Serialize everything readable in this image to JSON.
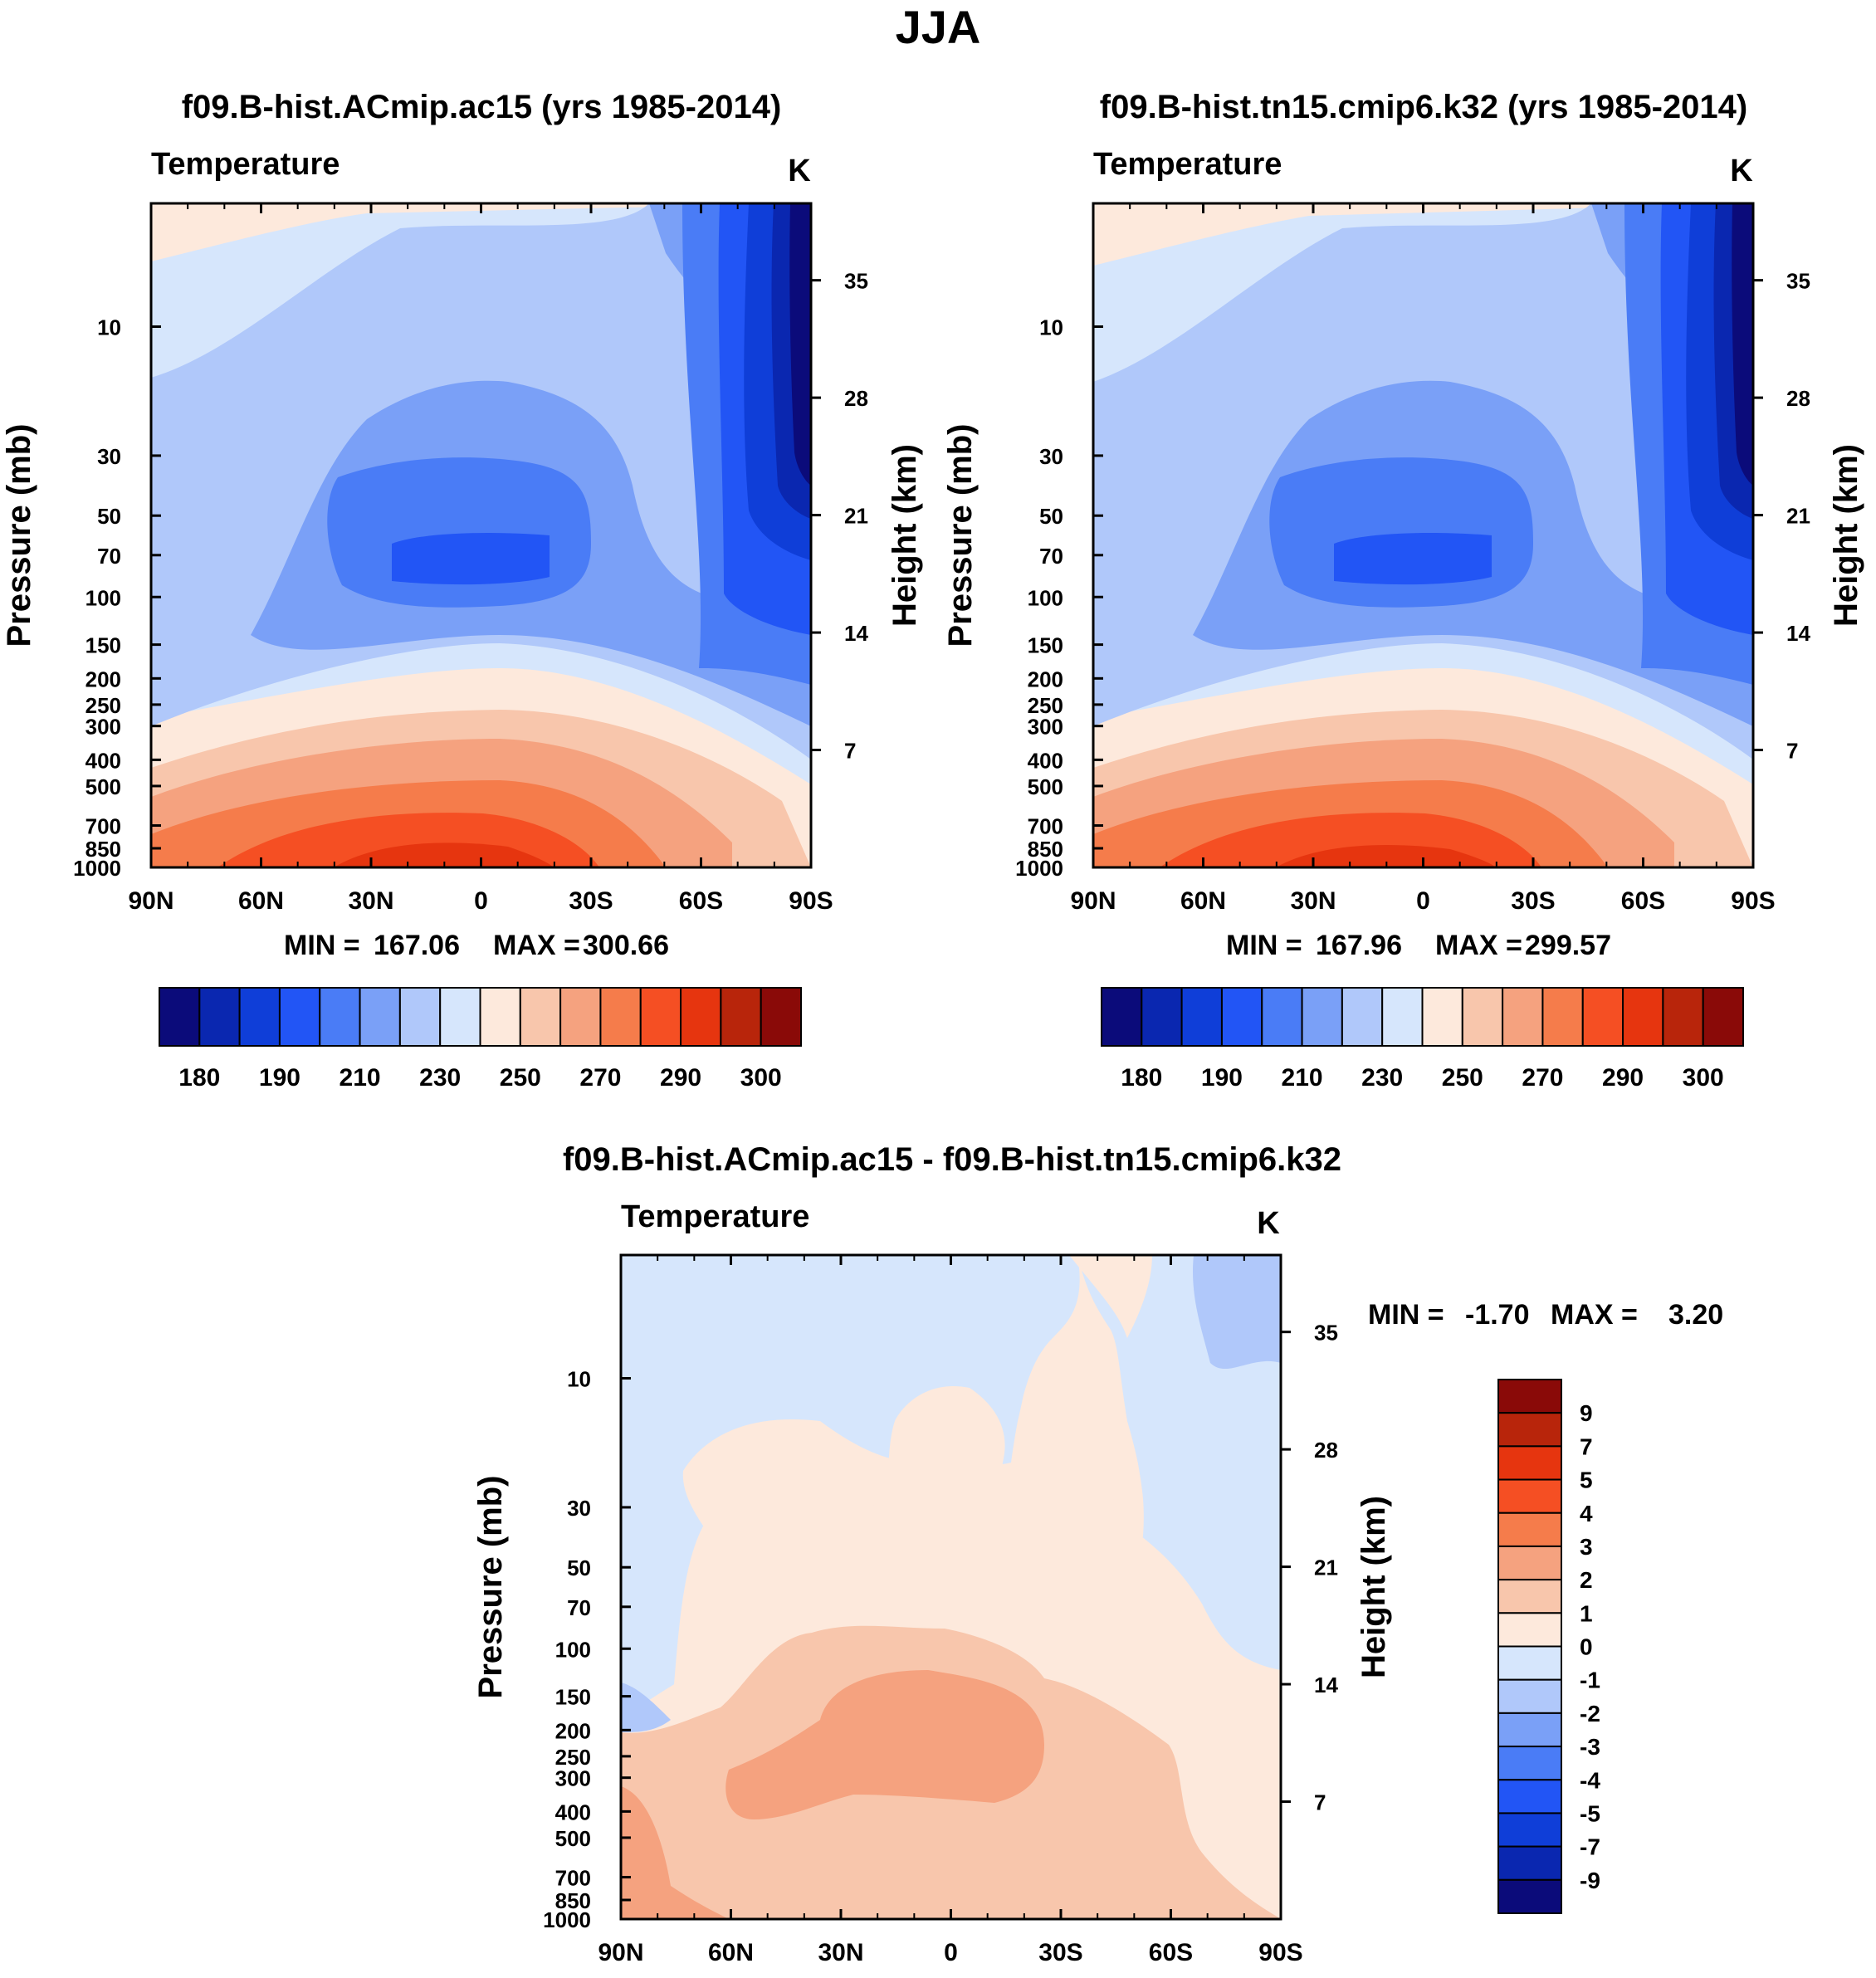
{
  "season_title": "JJA",
  "chart_data": [
    {
      "type": "contour",
      "title": "f09.B-hist.ACmip.ac15 (yrs 1985-2014)",
      "field_label": "Temperature",
      "units": "K",
      "ylabel": "Pressure (mb)",
      "y2label": "Height (km)",
      "x_ticks": [
        "90N",
        "60N",
        "30N",
        "0",
        "30S",
        "60S",
        "90S"
      ],
      "y_ticks": [
        "10",
        "30",
        "50",
        "70",
        "100",
        "150",
        "200",
        "250",
        "300",
        "400",
        "500",
        "700",
        "850",
        "1000"
      ],
      "y_tick_values": [
        10,
        30,
        50,
        70,
        100,
        150,
        200,
        250,
        300,
        400,
        500,
        700,
        850,
        1000
      ],
      "height_ticks": [
        "35",
        "28",
        "21",
        "14",
        "7"
      ],
      "height_tick_values": [
        35,
        28,
        21,
        14,
        7
      ],
      "xlim": [
        90,
        -90
      ],
      "ylim_mb": [
        3.5,
        1000
      ],
      "stats": {
        "min_label": "MIN =",
        "min": "167.06",
        "max_label": "MAX =",
        "max": "300.66"
      },
      "colorbar": {
        "orientation": "horizontal",
        "colors": [
          "#0b0b7a",
          "#0a27b0",
          "#0f3ed8",
          "#2255f5",
          "#4a7cf6",
          "#7aa0f7",
          "#b0c8fa",
          "#d6e6fc",
          "#fde9dc",
          "#f8c6ac",
          "#f5a27f",
          "#f57c4b",
          "#f54f23",
          "#e6350f",
          "#b8250b",
          "#8a0a08"
        ],
        "labels": [
          "180",
          "190",
          "210",
          "230",
          "250",
          "270",
          "290",
          "300"
        ]
      }
    },
    {
      "type": "contour",
      "title": "f09.B-hist.tn15.cmip6.k32 (yrs 1985-2014)",
      "field_label": "Temperature",
      "units": "K",
      "ylabel": "Pressure (mb)",
      "y2label": "Height (km)",
      "x_ticks": [
        "90N",
        "60N",
        "30N",
        "0",
        "30S",
        "60S",
        "90S"
      ],
      "y_ticks": [
        "10",
        "30",
        "50",
        "70",
        "100",
        "150",
        "200",
        "250",
        "300",
        "400",
        "500",
        "700",
        "850",
        "1000"
      ],
      "y_tick_values": [
        10,
        30,
        50,
        70,
        100,
        150,
        200,
        250,
        300,
        400,
        500,
        700,
        850,
        1000
      ],
      "height_ticks": [
        "35",
        "28",
        "21",
        "14",
        "7"
      ],
      "height_tick_values": [
        35,
        28,
        21,
        14,
        7
      ],
      "xlim": [
        90,
        -90
      ],
      "ylim_mb": [
        3.5,
        1000
      ],
      "stats": {
        "min_label": "MIN =",
        "min": "167.96",
        "max_label": "MAX =",
        "max": "299.57"
      },
      "colorbar": {
        "orientation": "horizontal",
        "colors": [
          "#0b0b7a",
          "#0a27b0",
          "#0f3ed8",
          "#2255f5",
          "#4a7cf6",
          "#7aa0f7",
          "#b0c8fa",
          "#d6e6fc",
          "#fde9dc",
          "#f8c6ac",
          "#f5a27f",
          "#f57c4b",
          "#f54f23",
          "#e6350f",
          "#b8250b",
          "#8a0a08"
        ],
        "labels": [
          "180",
          "190",
          "210",
          "230",
          "250",
          "270",
          "290",
          "300"
        ]
      }
    },
    {
      "type": "contour",
      "title": "f09.B-hist.ACmip.ac15 - f09.B-hist.tn15.cmip6.k32",
      "field_label": "Temperature",
      "units": "K",
      "ylabel": "Pressure (mb)",
      "y2label": "Height (km)",
      "x_ticks": [
        "90N",
        "60N",
        "30N",
        "0",
        "30S",
        "60S",
        "90S"
      ],
      "y_ticks": [
        "10",
        "30",
        "50",
        "70",
        "100",
        "150",
        "200",
        "250",
        "300",
        "400",
        "500",
        "700",
        "850",
        "1000"
      ],
      "y_tick_values": [
        10,
        30,
        50,
        70,
        100,
        150,
        200,
        250,
        300,
        400,
        500,
        700,
        850,
        1000
      ],
      "height_ticks": [
        "35",
        "28",
        "21",
        "14",
        "7"
      ],
      "height_tick_values": [
        35,
        28,
        21,
        14,
        7
      ],
      "xlim": [
        90,
        -90
      ],
      "ylim_mb": [
        3.5,
        1000
      ],
      "stats": {
        "min_label": "MIN =",
        "min": "-1.70",
        "max_label": "MAX =",
        "max": "3.20"
      },
      "colorbar": {
        "orientation": "vertical",
        "colors": [
          "#8a0a08",
          "#b8250b",
          "#e6350f",
          "#f54f23",
          "#f57c4b",
          "#f5a27f",
          "#f8c6ac",
          "#fde9dc",
          "#d6e6fc",
          "#b0c8fa",
          "#7aa0f7",
          "#4a7cf6",
          "#2255f5",
          "#0f3ed8",
          "#0a27b0",
          "#0b0b7a"
        ],
        "labels": [
          "9",
          "7",
          "5",
          "4",
          "3",
          "2",
          "1",
          "0",
          "-1",
          "-2",
          "-3",
          "-4",
          "-5",
          "-7",
          "-9"
        ]
      }
    }
  ]
}
